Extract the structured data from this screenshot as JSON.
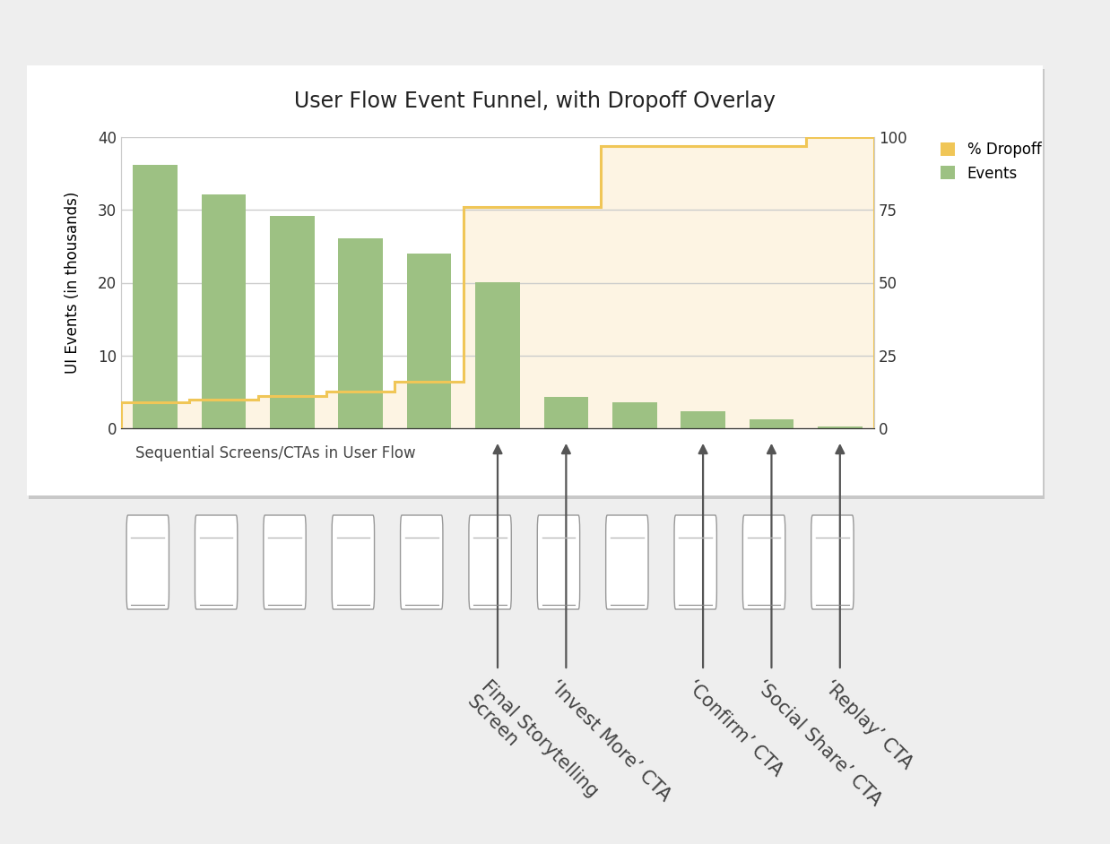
{
  "chart_data": {
    "type": "bar",
    "title": "User Flow Event Funnel, with Dropoff Overlay",
    "x_label": "Sequential Screens/CTAs in User Flow",
    "y_label": "UI Events (in thousands)",
    "categories": [
      null,
      null,
      null,
      null,
      null,
      null,
      null,
      null,
      null,
      null,
      null
    ],
    "series": [
      {
        "name": "% Dropoff",
        "type": "step",
        "axis": "y2",
        "color": "#f0c657",
        "values": [
          9,
          10,
          11,
          12.5,
          16,
          76,
          76,
          97,
          97,
          97,
          100
        ]
      },
      {
        "name": "Events",
        "type": "bar",
        "color": "#9dc183",
        "values": [
          36.2,
          32.1,
          29.2,
          26.1,
          24.0,
          20.1,
          4.3,
          3.6,
          2.3,
          1.2,
          0.3
        ]
      }
    ],
    "ylim": [
      0,
      40
    ],
    "yticks": [
      0,
      10,
      20,
      30,
      40
    ],
    "y2lim": [
      0,
      100
    ],
    "y2ticks": [
      0,
      25,
      50,
      75,
      100
    ],
    "grid": true,
    "legend": "upper left",
    "tick_labels": "y",
    "annotations": [
      {
        "text": "Final Storytelling\nScreen",
        "category": 5
      },
      {
        "text": "‘Invest More’ CTA",
        "category": 6
      },
      {
        "text": "‘Confirm’ CTA",
        "category": 8
      },
      {
        "text": "‘Social Share’ CTA",
        "category": 9
      },
      {
        "text": "‘Replay’ CTA",
        "category": 10
      }
    ]
  }
}
